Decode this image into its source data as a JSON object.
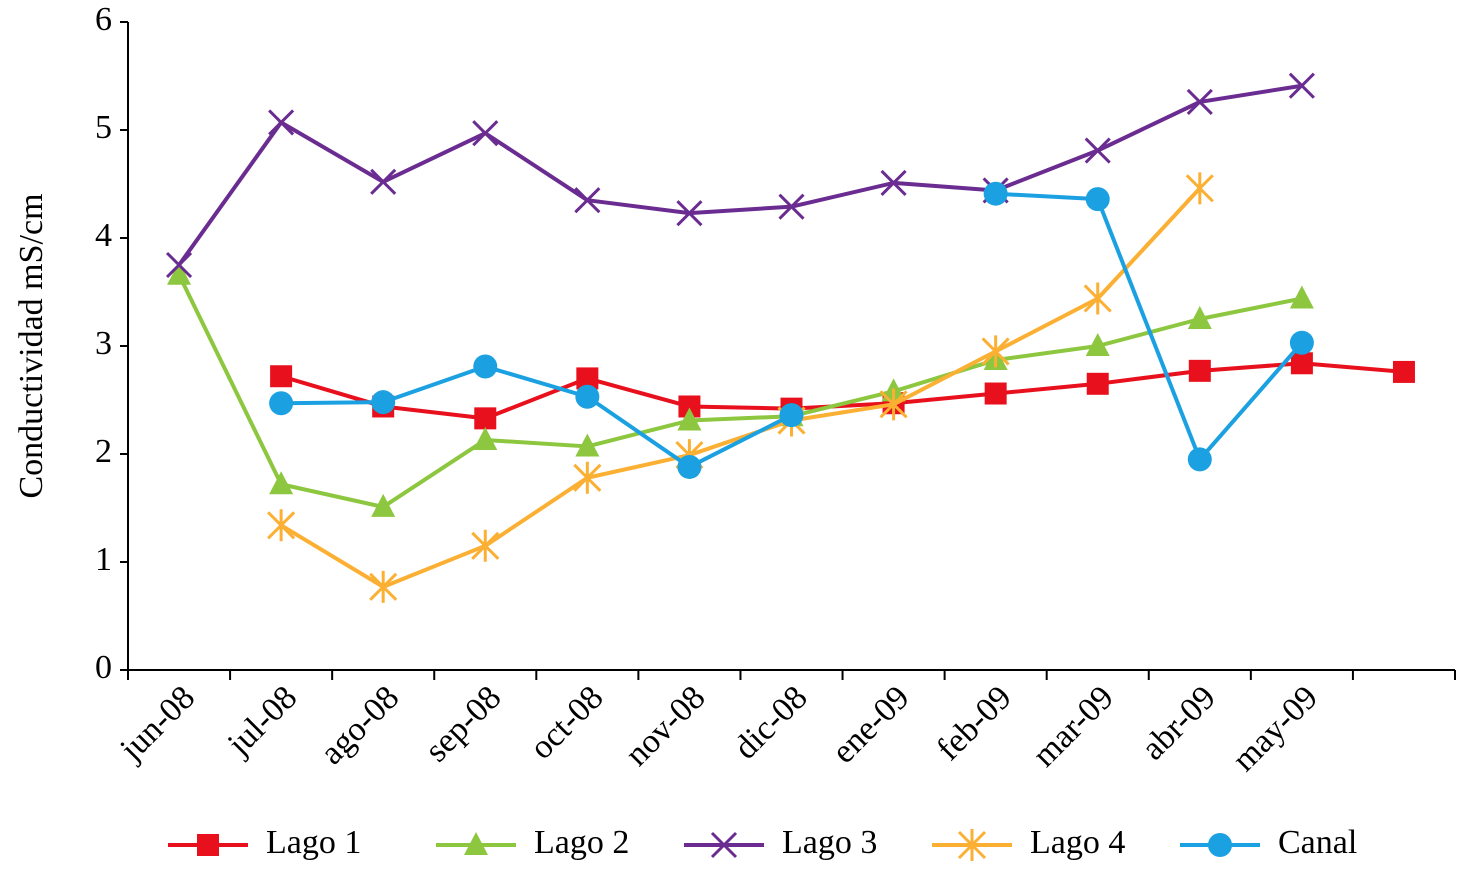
{
  "chart_data": {
    "type": "line",
    "y_label": "Conductividad mS/cm",
    "categories": [
      "jun-08",
      "jul-08",
      "ago-08",
      "sep-08",
      "oct-08",
      "nov-08",
      "dic-08",
      "ene-09",
      "feb-09",
      "mar-09",
      "abr-09",
      "may-09",
      null
    ],
    "ylim": [
      0,
      6
    ],
    "yticks": [
      0,
      1,
      2,
      3,
      4,
      5,
      6
    ],
    "legend": "bottom",
    "series": [
      {
        "name": "Lago 1",
        "color": "#e8101c",
        "marker": "square",
        "values": [
          null,
          2.72,
          2.44,
          2.33,
          2.7,
          2.44,
          2.42,
          2.47,
          2.56,
          2.65,
          2.77,
          2.84,
          2.76
        ]
      },
      {
        "name": "Lago 2",
        "color": "#8dc63f",
        "marker": "triangle",
        "values": [
          3.66,
          1.72,
          1.51,
          2.13,
          2.07,
          2.31,
          2.35,
          2.58,
          2.87,
          3.0,
          3.25,
          3.44,
          null
        ]
      },
      {
        "name": "Lago 3",
        "color": "#6b2c91",
        "marker": "x",
        "values": [
          3.75,
          5.07,
          4.52,
          4.97,
          4.35,
          4.23,
          4.29,
          4.51,
          4.44,
          4.81,
          5.26,
          5.41,
          null
        ]
      },
      {
        "name": "Lago 4",
        "color": "#fbb034",
        "marker": "asterisk",
        "values": [
          null,
          1.34,
          0.77,
          1.15,
          1.78,
          1.99,
          2.31,
          2.46,
          2.95,
          3.44,
          4.46,
          null,
          null
        ]
      },
      {
        "name": "Canal",
        "color": "#1ba1e2",
        "marker": "circle",
        "values": [
          null,
          2.47,
          2.48,
          2.81,
          2.53,
          1.88,
          2.36,
          null,
          4.41,
          4.36,
          1.95,
          3.03,
          null
        ]
      }
    ]
  }
}
